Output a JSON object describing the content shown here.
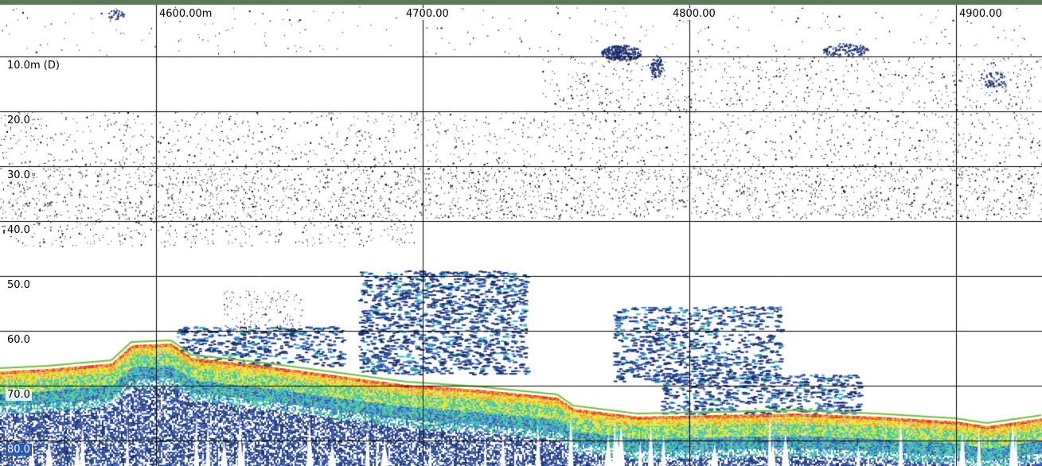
{
  "window": {
    "accent_color": "#5a7a5a"
  },
  "distance_axis": {
    "labels": [
      "4600.00m",
      "4700.00",
      "4800.00",
      "4900.00"
    ],
    "values_m": [
      4600,
      4700,
      4800,
      4900
    ]
  },
  "depth_axis": {
    "labels": [
      "10.0m (D)",
      "20.0",
      "30.0",
      "40.0",
      "50.0",
      "60.0",
      "70.0",
      "80.0"
    ],
    "values_m": [
      10,
      20,
      30,
      40,
      50,
      60,
      70,
      80
    ]
  },
  "bottom_line": {
    "color": "#6cc23a"
  },
  "palette": [
    "#1a2f6e",
    "#2d58b0",
    "#3a8fd0",
    "#2fc0c0",
    "#4fd07a",
    "#c8e23a",
    "#f2e23a",
    "#f29a2a",
    "#e8341e"
  ]
}
